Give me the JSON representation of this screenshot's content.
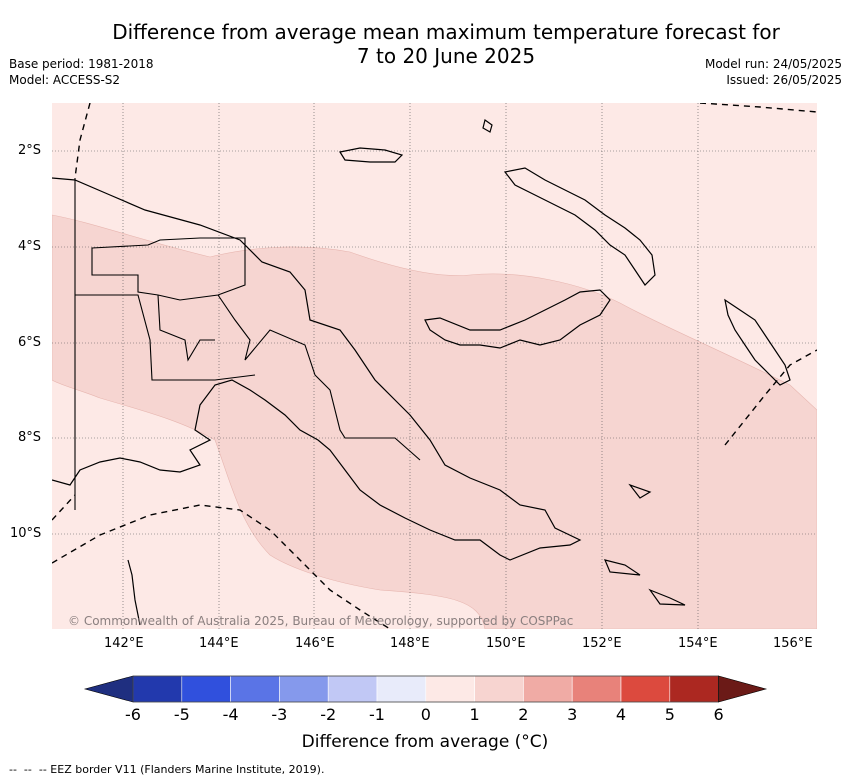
{
  "header": {
    "title_line1": "Difference from average mean maximum temperature forecast for",
    "title_line2": "7 to 20 June 2025",
    "base_period": "Base period: 1981-2018",
    "model": "Model: ACCESS-S2",
    "model_run": "Model run: 24/05/2025",
    "issued": "Issued: 26/05/2025"
  },
  "map": {
    "region": "Papua New Guinea",
    "lat_labels": [
      "2°S",
      "4°S",
      "6°S",
      "8°S",
      "10°S"
    ],
    "lon_labels": [
      "142°E",
      "144°E",
      "146°E",
      "148°E",
      "150°E",
      "152°E",
      "154°E",
      "156°E"
    ],
    "credit": "© Commonwealth of Australia 2025, Bureau of Meteorology, supported by COSPPac",
    "anomaly_classes_shown": [
      "0 to 1",
      "1 to 2"
    ]
  },
  "colorbar": {
    "title": "Difference from average (°C)",
    "ticks": [
      "-6",
      "-5",
      "-4",
      "-3",
      "-2",
      "-1",
      "0",
      "1",
      "2",
      "3",
      "4",
      "5",
      "6"
    ],
    "under_color": "#1f2f80",
    "over_color": "#6b1a17",
    "colors": [
      "#2239ad",
      "#3050dd",
      "#5a74e6",
      "#8599ec",
      "#c1c8f5",
      "#e8ebfa",
      "#fde9e6",
      "#f7d4d0",
      "#f0aba5",
      "#e8827a",
      "#dc4a3e",
      "#ac2821"
    ]
  },
  "footer": {
    "legend_text": "-- EEZ border V11 (Flanders Marine Institute, 2019)."
  }
}
